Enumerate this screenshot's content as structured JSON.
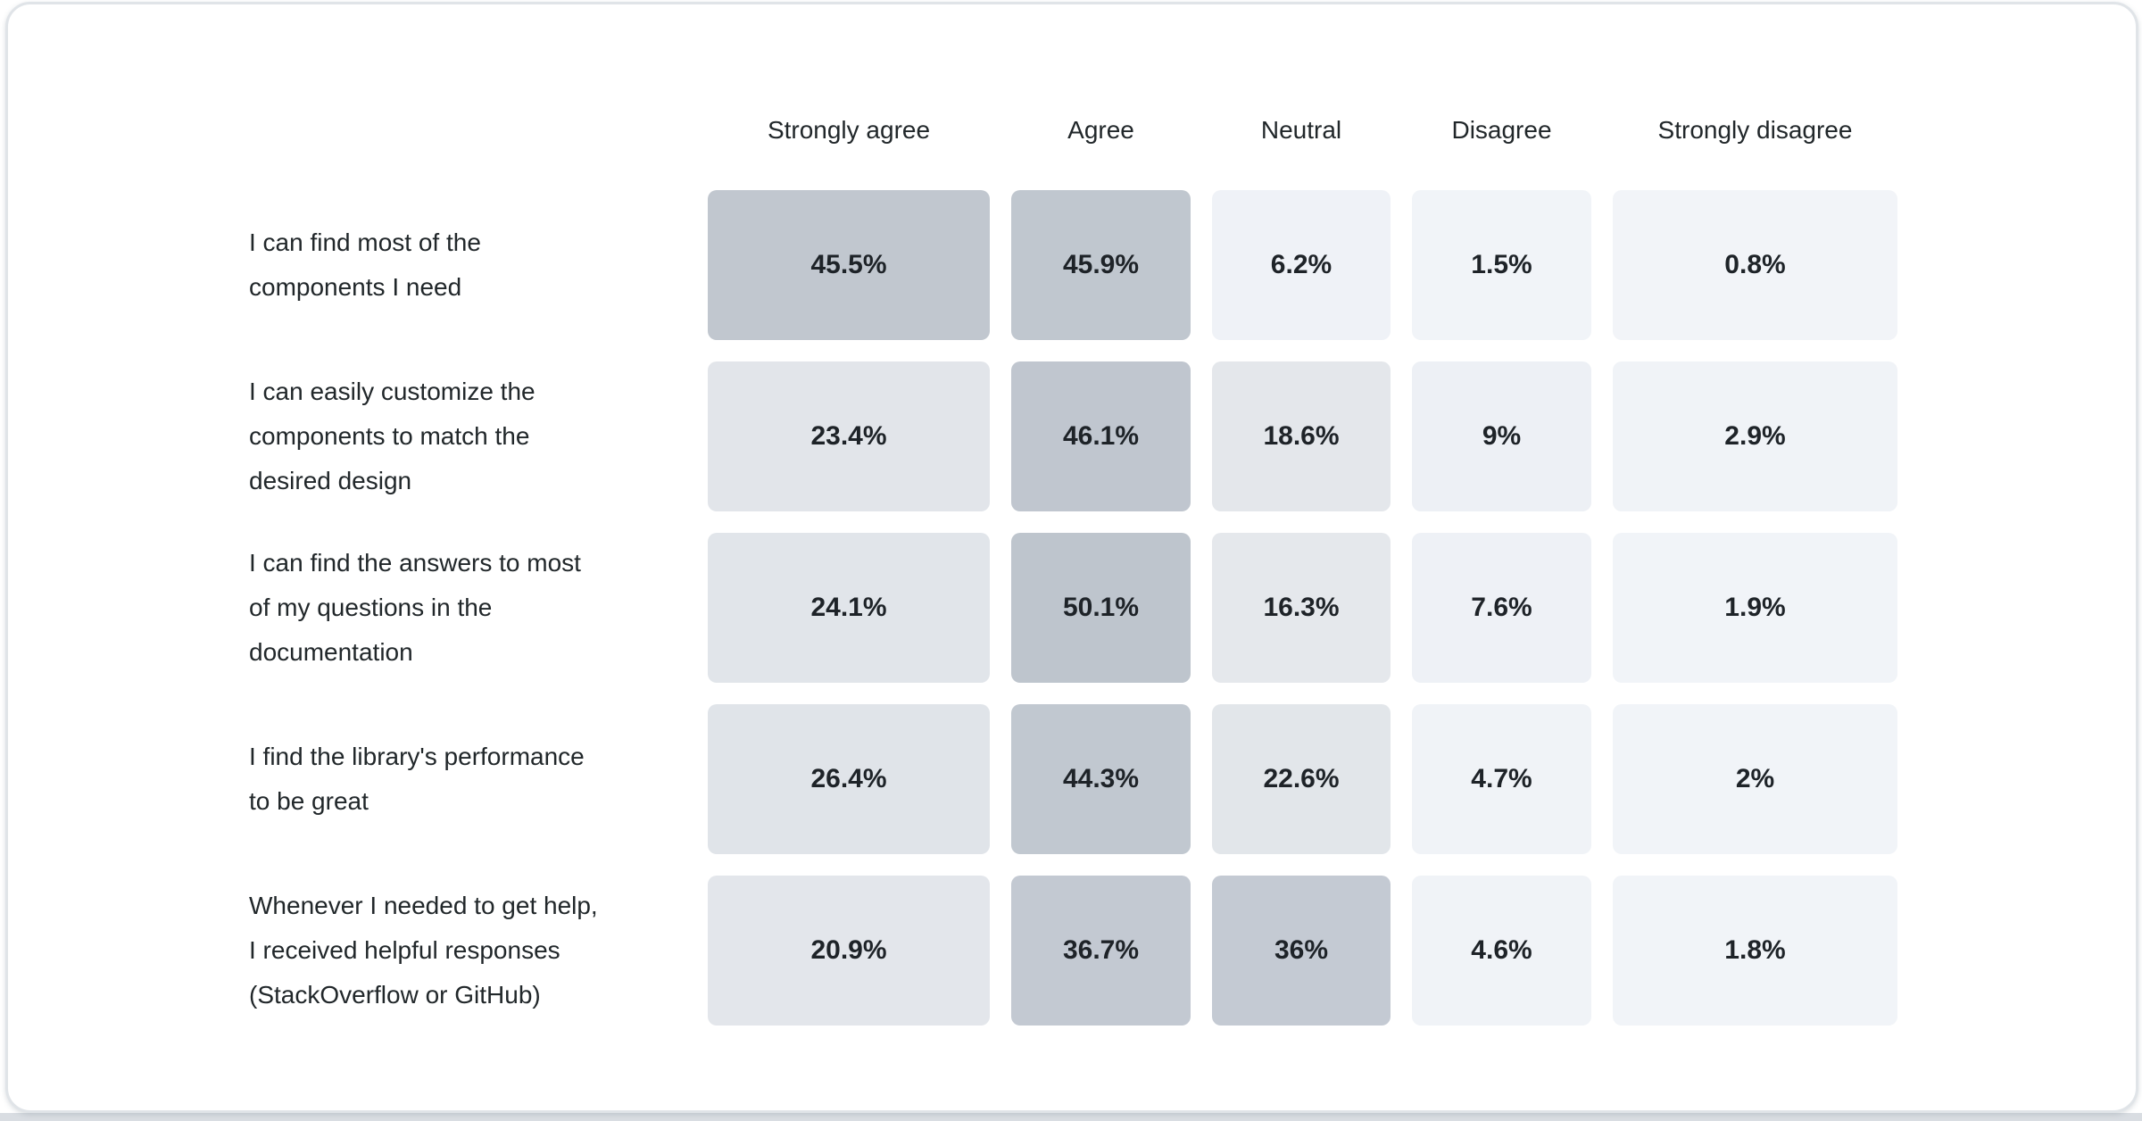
{
  "page": {
    "background_color": "#ffffff",
    "bottom_strip_color": "#d9dde2",
    "card_background": "#ffffff",
    "card_border_color": "#e0e4e8",
    "header_text_color": "#21272a",
    "label_text_color": "#21272a",
    "value_text_color": "#1e2328"
  },
  "chart_data": {
    "type": "heatmap",
    "title": "",
    "legend_position": "none",
    "grid": false,
    "columns": [
      "Strongly agree",
      "Agree",
      "Neutral",
      "Disagree",
      "Strongly disagree"
    ],
    "color_scale": {
      "low_color": "#f2f4f8",
      "high_color": "#bec5cd"
    },
    "rows": [
      {
        "label": "I can find most of the components I need",
        "label_lines": [
          "I can find most of the",
          "components I need"
        ],
        "values": [
          45.5,
          45.9,
          6.2,
          1.5,
          0.8
        ],
        "display": [
          "45.5%",
          "45.9%",
          "6.2%",
          "1.5%",
          "0.8%"
        ],
        "colors": [
          "#c1c7cf",
          "#c0c7cf",
          "#eff2f7",
          "#f1f4f8",
          "#f2f4f8"
        ]
      },
      {
        "label": "I can easily customize the components to match the desired design",
        "label_lines": [
          "I can easily customize the",
          "components to match the",
          "desired design"
        ],
        "values": [
          23.4,
          46.1,
          18.6,
          9,
          2.9
        ],
        "display": [
          "23.4%",
          "46.1%",
          "18.6%",
          "9%",
          "2.9%"
        ],
        "colors": [
          "#e2e5ea",
          "#c0c6cf",
          "#e4e7eb",
          "#edf0f5",
          "#f0f3f7"
        ]
      },
      {
        "label": "I can find the answers to most of my questions in the documentation",
        "label_lines": [
          "I can find the answers to most",
          "of my questions in the",
          "documentation"
        ],
        "values": [
          24.1,
          50.1,
          16.3,
          7.6,
          1.9
        ],
        "display": [
          "24.1%",
          "50.1%",
          "16.3%",
          "7.6%",
          "1.9%"
        ],
        "colors": [
          "#e1e5ea",
          "#bec5cd",
          "#e5e8ec",
          "#eef1f6",
          "#f1f4f8"
        ]
      },
      {
        "label": "I find the library's performance to be great",
        "label_lines": [
          "I find the library's performance",
          "to be great"
        ],
        "values": [
          26.4,
          44.3,
          22.6,
          4.7,
          2
        ],
        "display": [
          "26.4%",
          "44.3%",
          "22.6%",
          "4.7%",
          "2%"
        ],
        "colors": [
          "#e0e4e9",
          "#c1c8d0",
          "#e2e6ea",
          "#f0f3f7",
          "#f1f4f8"
        ]
      },
      {
        "label": "Whenever I needed to get help, I received helpful responses (StackOverflow or GitHub)",
        "label_lines": [
          "Whenever I needed to get help,",
          "I received helpful responses",
          "(StackOverflow or GitHub)"
        ],
        "values": [
          20.9,
          36.7,
          36,
          4.6,
          1.8
        ],
        "display": [
          "20.9%",
          "36.7%",
          "36%",
          "4.6%",
          "1.8%"
        ],
        "colors": [
          "#e3e6eb",
          "#c3c9d2",
          "#c4cad3",
          "#f0f3f7",
          "#f1f4f8"
        ]
      }
    ]
  }
}
